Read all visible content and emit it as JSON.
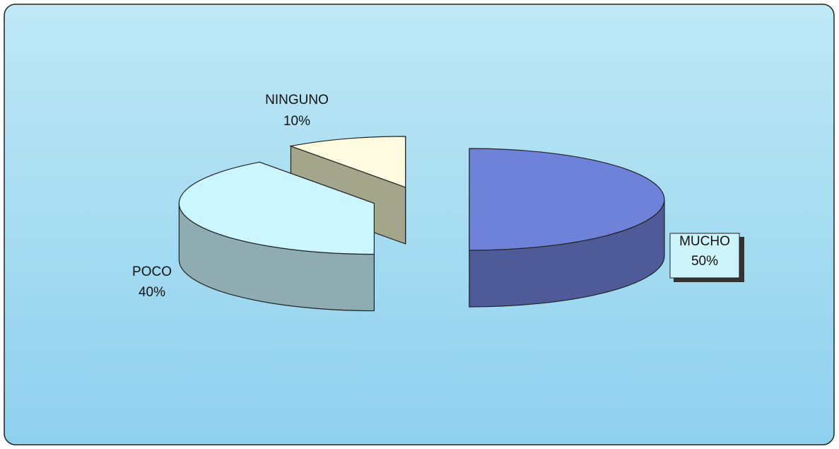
{
  "chart_data": {
    "type": "pie3d",
    "categories": [
      "MUCHO",
      "POCO",
      "NINGUNO"
    ],
    "values": [
      50,
      40,
      10
    ],
    "value_labels": [
      "50%",
      "40%",
      "10%"
    ],
    "colors": [
      "#6f82d9",
      "#ccf6ff",
      "#fffbe0"
    ]
  }
}
